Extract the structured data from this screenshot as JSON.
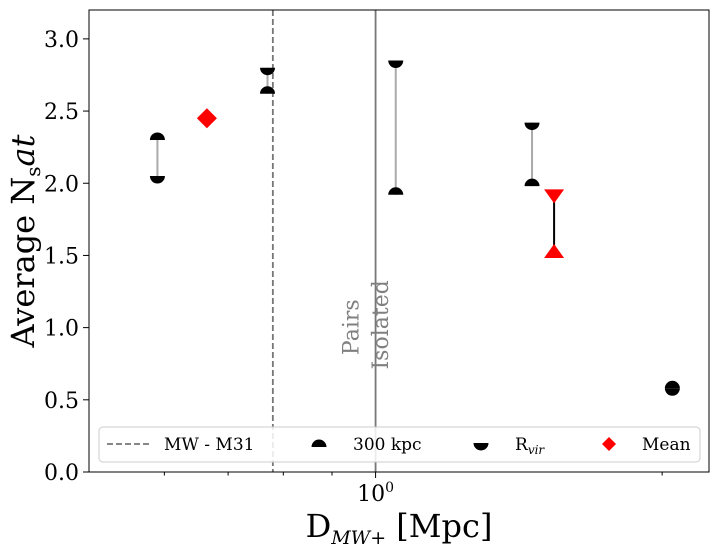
{
  "chart_data": {
    "type": "scatter",
    "title": "",
    "xlabel": "D_{MW+} [Mpc]",
    "ylabel": "Average N_sat",
    "xlabel_parts": {
      "main": "D",
      "sub": "MW+",
      "tail": " [Mpc]"
    },
    "ylabel_parts": {
      "main": "Average N",
      "sub": "s",
      "tail": "at"
    },
    "x_scale": "log",
    "xlim": [
      0.5,
      2.24
    ],
    "ylim": [
      0,
      3.2
    ],
    "x_ticks": [
      {
        "value": 1.0,
        "label": "10",
        "sup": "0"
      }
    ],
    "y_ticks": [
      {
        "value": 0.0,
        "label": "0.0"
      },
      {
        "value": 0.5,
        "label": "0.5"
      },
      {
        "value": 1.0,
        "label": "1.0"
      },
      {
        "value": 1.5,
        "label": "1.5"
      },
      {
        "value": 2.0,
        "label": "2.0"
      },
      {
        "value": 2.5,
        "label": "2.5"
      },
      {
        "value": 3.0,
        "label": "3.0"
      }
    ],
    "vlines": [
      {
        "name": "MW - M31",
        "x": 0.78,
        "style": "dashed",
        "color": "#777777"
      },
      {
        "name": "Pairs / Isolated boundary",
        "x": 1.0,
        "style": "solid",
        "color": "#777777"
      }
    ],
    "annotations": [
      {
        "text": "Pairs",
        "x": 0.96,
        "y": 0.81,
        "rotation": -90,
        "color": "#808080"
      },
      {
        "text": "Isolated",
        "x": 1.03,
        "y": 0.71,
        "rotation": -90,
        "color": "#808080"
      }
    ],
    "series": [
      {
        "name": "300 kpc",
        "marker": "half-circle-top",
        "color": "#000000",
        "points": [
          {
            "x": 0.59,
            "y": 2.3
          },
          {
            "x": 0.77,
            "y": 2.62
          },
          {
            "x": 1.05,
            "y": 1.92
          },
          {
            "x": 1.46,
            "y": 1.98
          },
          {
            "x": 2.05,
            "y": 0.58
          }
        ]
      },
      {
        "name": "R_vir",
        "marker": "half-circle-bottom",
        "color": "#000000",
        "points": [
          {
            "x": 0.59,
            "y": 2.05
          },
          {
            "x": 0.77,
            "y": 2.8
          },
          {
            "x": 1.05,
            "y": 2.85
          },
          {
            "x": 1.46,
            "y": 2.42
          },
          {
            "x": 2.05,
            "y": 0.58
          }
        ]
      },
      {
        "name": "Mean",
        "marker": "diamond",
        "color": "#ff0000",
        "points": [
          {
            "x": 0.665,
            "y": 2.45
          }
        ]
      }
    ],
    "range_bars": [
      {
        "x": 0.59,
        "y_low": 2.05,
        "y_high": 2.3,
        "color": "#aaaaaa"
      },
      {
        "x": 0.77,
        "y_low": 2.62,
        "y_high": 2.8,
        "color": "#aaaaaa"
      },
      {
        "x": 1.05,
        "y_low": 1.92,
        "y_high": 2.85,
        "color": "#aaaaaa"
      },
      {
        "x": 1.46,
        "y_low": 1.98,
        "y_high": 2.42,
        "color": "#aaaaaa"
      }
    ],
    "red_range": {
      "x": 1.54,
      "y_low": 1.51,
      "y_high": 1.93,
      "color": "#ff0000"
    },
    "legend": {
      "placement": "bottom",
      "entries": [
        {
          "label": "MW - M31",
          "kind": "dashed-line"
        },
        {
          "label": "300 kpc",
          "kind": "half-circle-top"
        },
        {
          "label": "R",
          "sub": "vir",
          "kind": "half-circle-bottom"
        },
        {
          "label": "Mean",
          "kind": "diamond"
        }
      ]
    },
    "grid": false
  }
}
